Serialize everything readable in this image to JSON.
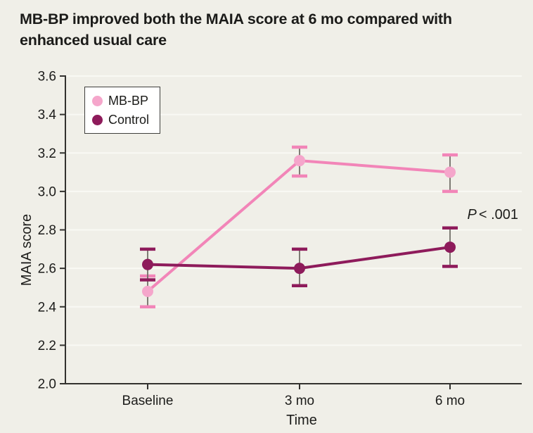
{
  "title": {
    "line1": "MB-BP improved both the MAIA score at 6 mo compared with",
    "line2": "enhanced usual care"
  },
  "legend": {
    "items": [
      {
        "label": "MB-BP",
        "color": "#F5A6CB"
      },
      {
        "label": "Control",
        "color": "#8E1B5B"
      }
    ]
  },
  "chart_data": {
    "type": "line",
    "categories": [
      "Baseline",
      "3 mo",
      "6 mo"
    ],
    "xlabel": "Time",
    "ylabel": "MAIA score",
    "ylim": [
      2.0,
      3.6
    ],
    "yticks": [
      2.0,
      2.2,
      2.4,
      2.6,
      2.8,
      3.0,
      3.2,
      3.4,
      3.6
    ],
    "grid": true,
    "legend_position": "top-left",
    "series": [
      {
        "name": "MB-BP",
        "line_color": "#F285B8",
        "marker_color": "#F5A6CB",
        "values": [
          2.48,
          3.16,
          3.1
        ],
        "ci_lower": [
          2.4,
          3.08,
          3.0
        ],
        "ci_upper": [
          2.56,
          3.23,
          3.19
        ]
      },
      {
        "name": "Control",
        "line_color": "#8E1B5B",
        "marker_color": "#8E1B5B",
        "values": [
          2.62,
          2.6,
          2.71
        ],
        "ci_lower": [
          2.54,
          2.51,
          2.61
        ],
        "ci_upper": [
          2.7,
          2.7,
          2.81
        ]
      }
    ],
    "annotation": {
      "italic": "P",
      "rest": "< .001"
    }
  },
  "colors": {
    "background": "#F0EFE8",
    "gridline": "#F9F9F4",
    "axis": "#33322F",
    "whisker": "#716E67",
    "text": "#1C1C1A"
  }
}
